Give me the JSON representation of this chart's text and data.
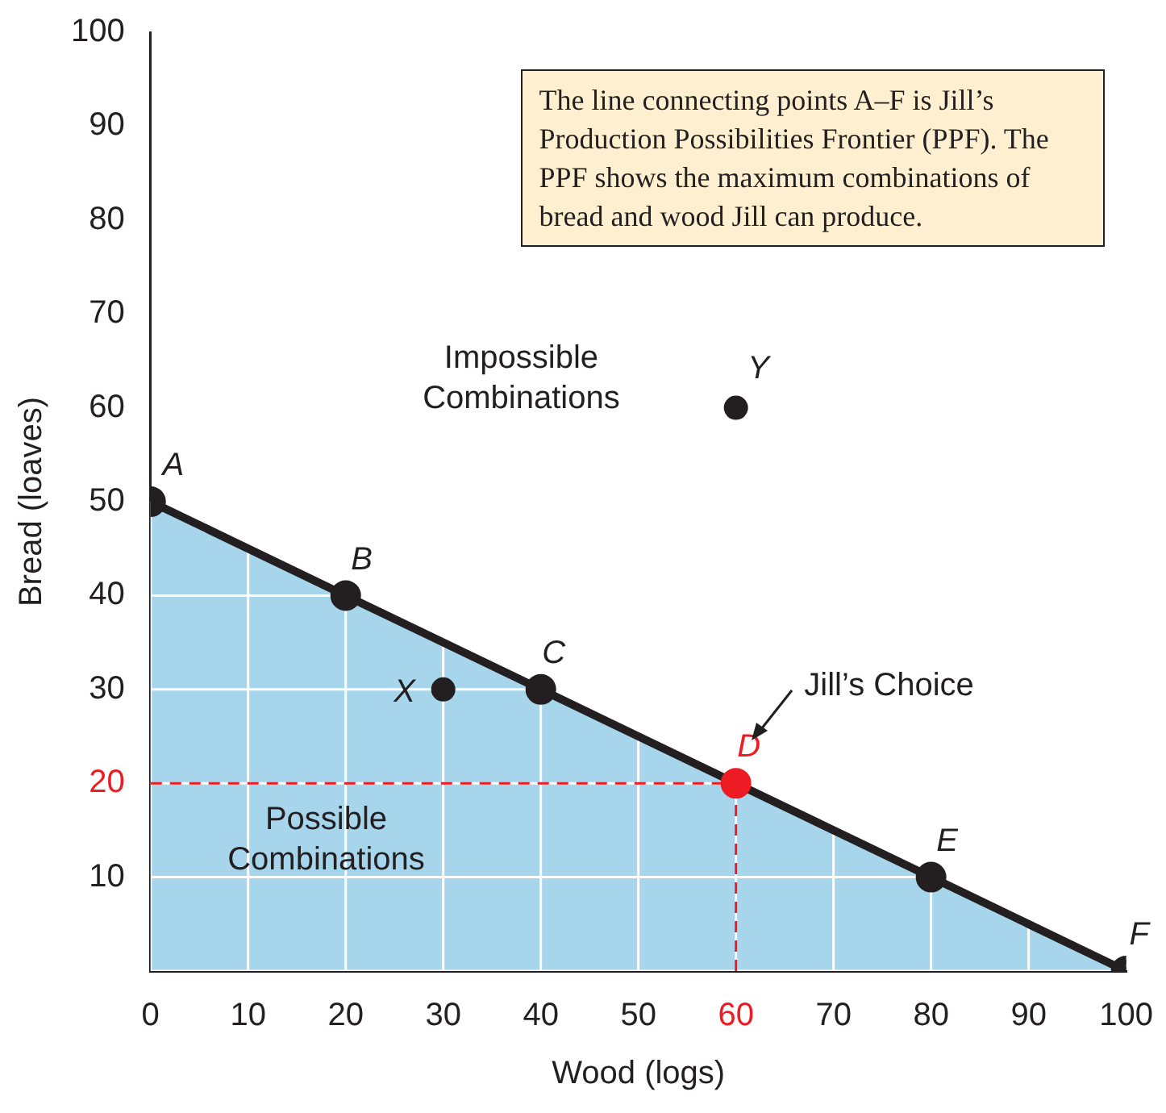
{
  "chart_data": {
    "type": "area",
    "xlabel": "Wood (logs)",
    "ylabel": "Bread (loaves)",
    "xlim": [
      0,
      100
    ],
    "ylim": [
      0,
      100
    ],
    "xticks": [
      0,
      10,
      20,
      30,
      40,
      50,
      60,
      70,
      80,
      90,
      100
    ],
    "yticks": [
      {
        "value": 0,
        "label": null
      },
      10,
      20,
      30,
      40,
      50,
      60,
      70,
      80,
      90,
      100
    ],
    "grid": true,
    "legend": false,
    "series": [
      {
        "color": "#a6d5ec",
        "marker": "circle",
        "x": [
          0,
          20,
          40,
          60,
          80,
          100
        ],
        "values": [
          50,
          40,
          30,
          20,
          10,
          0
        ],
        "colors": [
          "#231f20",
          "#231f20",
          "#231f20",
          "#ed1c24",
          "#231f20",
          "#231f20"
        ]
      },
      {
        "type": "scatter",
        "color": "#231f20",
        "marker": "circle",
        "x": [
          30,
          60
        ],
        "values": [
          30,
          60
        ]
      }
    ],
    "ref_lines": [
      {
        "axis": "y",
        "value": 20,
        "color": "#ed1c24",
        "line_style": "dashed"
      },
      {
        "axis": "x",
        "value": 60,
        "color": "#ed1c24",
        "line_style": "dashed"
      }
    ],
    "annotations": [
      "The line connecting points A–F is Jill’s Production Possibilities Frontier (PPF). The PPF shows the maximum combinations of bread and wood Jill can produce.",
      "Impossible Combinations",
      "Possible Combinations",
      {
        "text": "A",
        "x": 0,
        "y": 50
      },
      {
        "text": "B",
        "x": 20,
        "y": 40
      },
      {
        "text": "C",
        "x": 40,
        "y": 30
      },
      {
        "text": "D",
        "x": 60,
        "y": 20
      },
      {
        "text": "E",
        "x": 80,
        "y": 10
      },
      {
        "text": "F",
        "x": 100,
        "y": 0
      },
      {
        "text": "X",
        "x": 30,
        "y": 30
      },
      {
        "text": "Y",
        "x": 60,
        "y": 60
      },
      "Jill’s Choice"
    ]
  }
}
